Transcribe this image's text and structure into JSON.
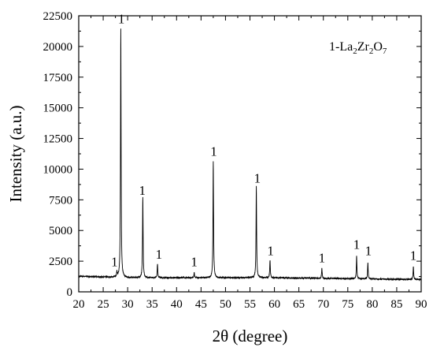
{
  "chart_data": {
    "type": "line",
    "title": "",
    "xlabel": "2θ (degree)",
    "ylabel": "Intensity (a.u.)",
    "xlim": [
      20,
      90
    ],
    "ylim": [
      0,
      22500
    ],
    "xticks": [
      "20",
      "25",
      "30",
      "35",
      "40",
      "45",
      "50",
      "55",
      "60",
      "65",
      "70",
      "75",
      "80",
      "85",
      "90"
    ],
    "yticks": [
      "0",
      "2500",
      "5000",
      "7500",
      "10000",
      "12500",
      "15000",
      "17500",
      "20000",
      "22500"
    ],
    "grid": false,
    "legend": {
      "position": "top-right",
      "prefix": "1-",
      "formula": [
        {
          "t": "La",
          "sub": false
        },
        {
          "t": "2",
          "sub": true
        },
        {
          "t": "Zr",
          "sub": false
        },
        {
          "t": "2",
          "sub": true
        },
        {
          "t": "O",
          "sub": false
        },
        {
          "t": "7",
          "sub": true
        }
      ]
    },
    "baseline": 1150,
    "series": [
      {
        "peaks": [
          {
            "x": 27.8,
            "y": 1600
          },
          {
            "x": 28.6,
            "y": 21400
          },
          {
            "x": 33.1,
            "y": 7700
          },
          {
            "x": 36.1,
            "y": 2300
          },
          {
            "x": 43.6,
            "y": 1550
          },
          {
            "x": 47.5,
            "y": 10600
          },
          {
            "x": 56.3,
            "y": 8600
          },
          {
            "x": 59.1,
            "y": 2600
          },
          {
            "x": 69.7,
            "y": 2000
          },
          {
            "x": 76.8,
            "y": 3000
          },
          {
            "x": 79.1,
            "y": 2500
          },
          {
            "x": 88.4,
            "y": 2200
          }
        ]
      }
    ],
    "annotations": [
      {
        "text": "1",
        "x": 27.3,
        "y": 2100
      },
      {
        "text": "1",
        "x": 28.7,
        "y": 21900
      },
      {
        "text": "1",
        "x": 33.0,
        "y": 7900
      },
      {
        "text": "1",
        "x": 36.4,
        "y": 2700
      },
      {
        "text": "1",
        "x": 43.6,
        "y": 2100
      },
      {
        "text": "1",
        "x": 47.6,
        "y": 11100
      },
      {
        "text": "1",
        "x": 56.5,
        "y": 8900
      },
      {
        "text": "1",
        "x": 59.2,
        "y": 3000
      },
      {
        "text": "1",
        "x": 69.7,
        "y": 2400
      },
      {
        "text": "1",
        "x": 76.8,
        "y": 3500
      },
      {
        "text": "1",
        "x": 79.2,
        "y": 3000
      },
      {
        "text": "1",
        "x": 88.4,
        "y": 2600
      }
    ]
  }
}
